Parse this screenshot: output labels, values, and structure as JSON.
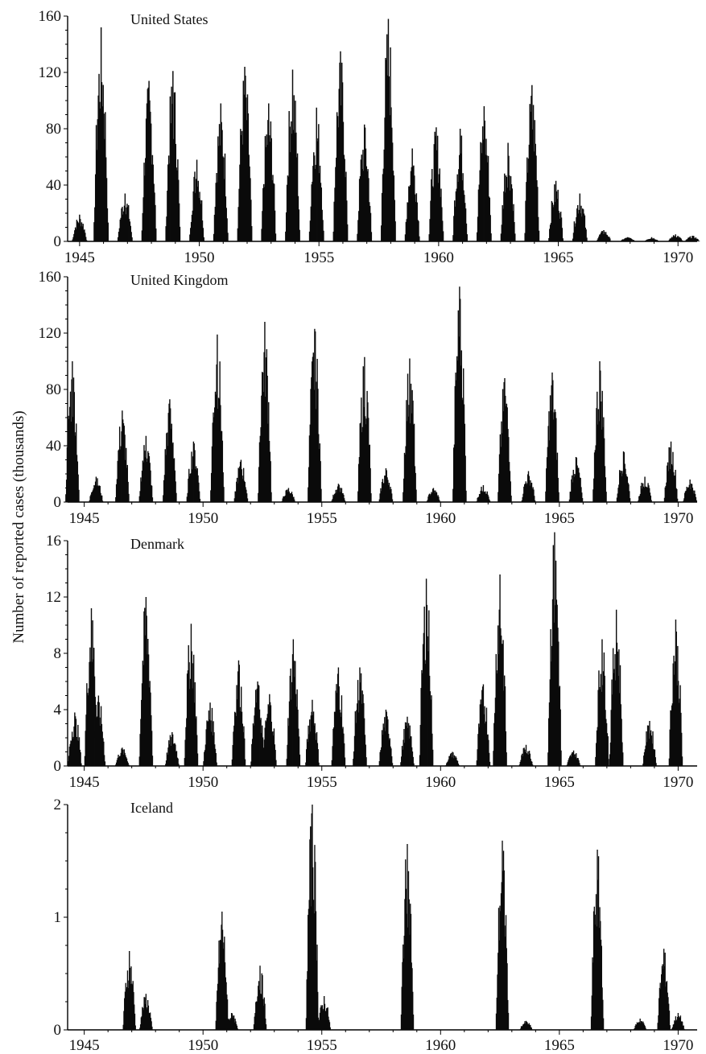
{
  "figure": {
    "ylabel": "Number of reported cases (thousands)"
  },
  "chart_data": [
    {
      "type": "bar",
      "title": "United States",
      "xlabel": "",
      "ylabel": "Number of reported cases (thousands)",
      "xlim": [
        1944.5,
        1970.8
      ],
      "ylim": [
        0,
        160
      ],
      "y_ticks": [
        0,
        40,
        80,
        120,
        160
      ],
      "x_ticks": [
        1945,
        1950,
        1955,
        1960,
        1965,
        1970
      ],
      "units": "thousands of reported cases",
      "grid": false,
      "peaks": [
        {
          "x": 1945.0,
          "y": 19
        },
        {
          "x": 1945.9,
          "y": 152
        },
        {
          "x": 1946.9,
          "y": 34
        },
        {
          "x": 1947.9,
          "y": 114
        },
        {
          "x": 1948.9,
          "y": 121
        },
        {
          "x": 1949.9,
          "y": 58
        },
        {
          "x": 1950.9,
          "y": 98
        },
        {
          "x": 1951.9,
          "y": 124
        },
        {
          "x": 1952.9,
          "y": 98
        },
        {
          "x": 1953.9,
          "y": 122
        },
        {
          "x": 1954.9,
          "y": 95
        },
        {
          "x": 1955.9,
          "y": 135
        },
        {
          "x": 1956.9,
          "y": 83
        },
        {
          "x": 1957.9,
          "y": 158
        },
        {
          "x": 1958.9,
          "y": 66
        },
        {
          "x": 1959.9,
          "y": 81
        },
        {
          "x": 1960.9,
          "y": 80
        },
        {
          "x": 1961.9,
          "y": 96
        },
        {
          "x": 1962.9,
          "y": 70
        },
        {
          "x": 1963.9,
          "y": 111
        },
        {
          "x": 1964.9,
          "y": 43
        },
        {
          "x": 1965.9,
          "y": 34
        },
        {
          "x": 1966.9,
          "y": 8
        },
        {
          "x": 1967.9,
          "y": 3
        },
        {
          "x": 1968.9,
          "y": 3
        },
        {
          "x": 1969.9,
          "y": 5
        },
        {
          "x": 1970.6,
          "y": 4
        }
      ]
    },
    {
      "type": "bar",
      "title": "United Kingdom",
      "xlabel": "",
      "ylabel": "Number of reported cases (thousands)",
      "xlim": [
        1944.3,
        1970.8
      ],
      "ylim": [
        0,
        160
      ],
      "y_ticks": [
        0,
        40,
        80,
        120,
        160
      ],
      "x_ticks": [
        1945,
        1950,
        1955,
        1960,
        1965,
        1970
      ],
      "units": "thousands of reported cases",
      "grid": false,
      "peaks": [
        {
          "x": 1944.5,
          "y": 100
        },
        {
          "x": 1945.5,
          "y": 18
        },
        {
          "x": 1946.6,
          "y": 65
        },
        {
          "x": 1947.6,
          "y": 47
        },
        {
          "x": 1948.6,
          "y": 73
        },
        {
          "x": 1949.6,
          "y": 43
        },
        {
          "x": 1950.6,
          "y": 119
        },
        {
          "x": 1951.6,
          "y": 30
        },
        {
          "x": 1952.6,
          "y": 128
        },
        {
          "x": 1953.6,
          "y": 10
        },
        {
          "x": 1954.7,
          "y": 123
        },
        {
          "x": 1955.7,
          "y": 13
        },
        {
          "x": 1956.8,
          "y": 103
        },
        {
          "x": 1957.7,
          "y": 24
        },
        {
          "x": 1958.7,
          "y": 102
        },
        {
          "x": 1959.7,
          "y": 10
        },
        {
          "x": 1960.8,
          "y": 153
        },
        {
          "x": 1961.8,
          "y": 12
        },
        {
          "x": 1962.7,
          "y": 88
        },
        {
          "x": 1963.7,
          "y": 22
        },
        {
          "x": 1964.7,
          "y": 92
        },
        {
          "x": 1965.7,
          "y": 32
        },
        {
          "x": 1966.7,
          "y": 100
        },
        {
          "x": 1967.7,
          "y": 36
        },
        {
          "x": 1968.6,
          "y": 18
        },
        {
          "x": 1969.7,
          "y": 43
        },
        {
          "x": 1970.5,
          "y": 16
        }
      ]
    },
    {
      "type": "bar",
      "title": "Denmark",
      "xlabel": "",
      "ylabel": "Number of reported cases (thousands)",
      "xlim": [
        1944.3,
        1970.8
      ],
      "ylim": [
        0,
        16
      ],
      "y_ticks": [
        0,
        4,
        8,
        12,
        16
      ],
      "x_ticks": [
        1945,
        1950,
        1955,
        1960,
        1965,
        1970
      ],
      "units": "thousands of reported cases",
      "grid": false,
      "peaks": [
        {
          "x": 1944.6,
          "y": 3.8
        },
        {
          "x": 1945.3,
          "y": 11.2
        },
        {
          "x": 1945.6,
          "y": 5.0
        },
        {
          "x": 1946.6,
          "y": 1.3
        },
        {
          "x": 1947.6,
          "y": 12.0
        },
        {
          "x": 1948.7,
          "y": 2.4
        },
        {
          "x": 1949.5,
          "y": 10.1
        },
        {
          "x": 1950.3,
          "y": 4.5
        },
        {
          "x": 1951.5,
          "y": 7.5
        },
        {
          "x": 1952.3,
          "y": 6.0
        },
        {
          "x": 1952.8,
          "y": 5.1
        },
        {
          "x": 1953.8,
          "y": 9.0
        },
        {
          "x": 1954.6,
          "y": 4.7
        },
        {
          "x": 1955.7,
          "y": 7.0
        },
        {
          "x": 1956.6,
          "y": 7.0
        },
        {
          "x": 1957.7,
          "y": 4.0
        },
        {
          "x": 1958.6,
          "y": 3.5
        },
        {
          "x": 1959.4,
          "y": 13.3
        },
        {
          "x": 1960.5,
          "y": 1.0
        },
        {
          "x": 1961.8,
          "y": 5.8
        },
        {
          "x": 1962.5,
          "y": 13.6
        },
        {
          "x": 1963.6,
          "y": 1.5
        },
        {
          "x": 1964.8,
          "y": 16.6
        },
        {
          "x": 1965.6,
          "y": 1.1
        },
        {
          "x": 1966.8,
          "y": 9.0
        },
        {
          "x": 1967.4,
          "y": 11.1
        },
        {
          "x": 1968.8,
          "y": 3.2
        },
        {
          "x": 1969.9,
          "y": 10.4
        }
      ]
    },
    {
      "type": "bar",
      "title": "Iceland",
      "xlabel": "",
      "ylabel": "Number of reported cases (thousands)",
      "xlim": [
        1944.3,
        1970.8
      ],
      "ylim": [
        0,
        2
      ],
      "y_ticks": [
        0,
        1,
        2
      ],
      "x_ticks": [
        1945,
        1950,
        1955,
        1960,
        1965,
        1970
      ],
      "units": "thousands of reported cases",
      "grid": false,
      "peaks": [
        {
          "x": 1946.9,
          "y": 0.7
        },
        {
          "x": 1947.6,
          "y": 0.32
        },
        {
          "x": 1950.8,
          "y": 1.05
        },
        {
          "x": 1951.2,
          "y": 0.15
        },
        {
          "x": 1952.4,
          "y": 0.57
        },
        {
          "x": 1954.6,
          "y": 2.0
        },
        {
          "x": 1955.1,
          "y": 0.3
        },
        {
          "x": 1958.6,
          "y": 1.65
        },
        {
          "x": 1962.6,
          "y": 1.68
        },
        {
          "x": 1963.6,
          "y": 0.08
        },
        {
          "x": 1966.6,
          "y": 1.6
        },
        {
          "x": 1968.4,
          "y": 0.1
        },
        {
          "x": 1969.4,
          "y": 0.72
        },
        {
          "x": 1970.0,
          "y": 0.15
        }
      ]
    }
  ]
}
